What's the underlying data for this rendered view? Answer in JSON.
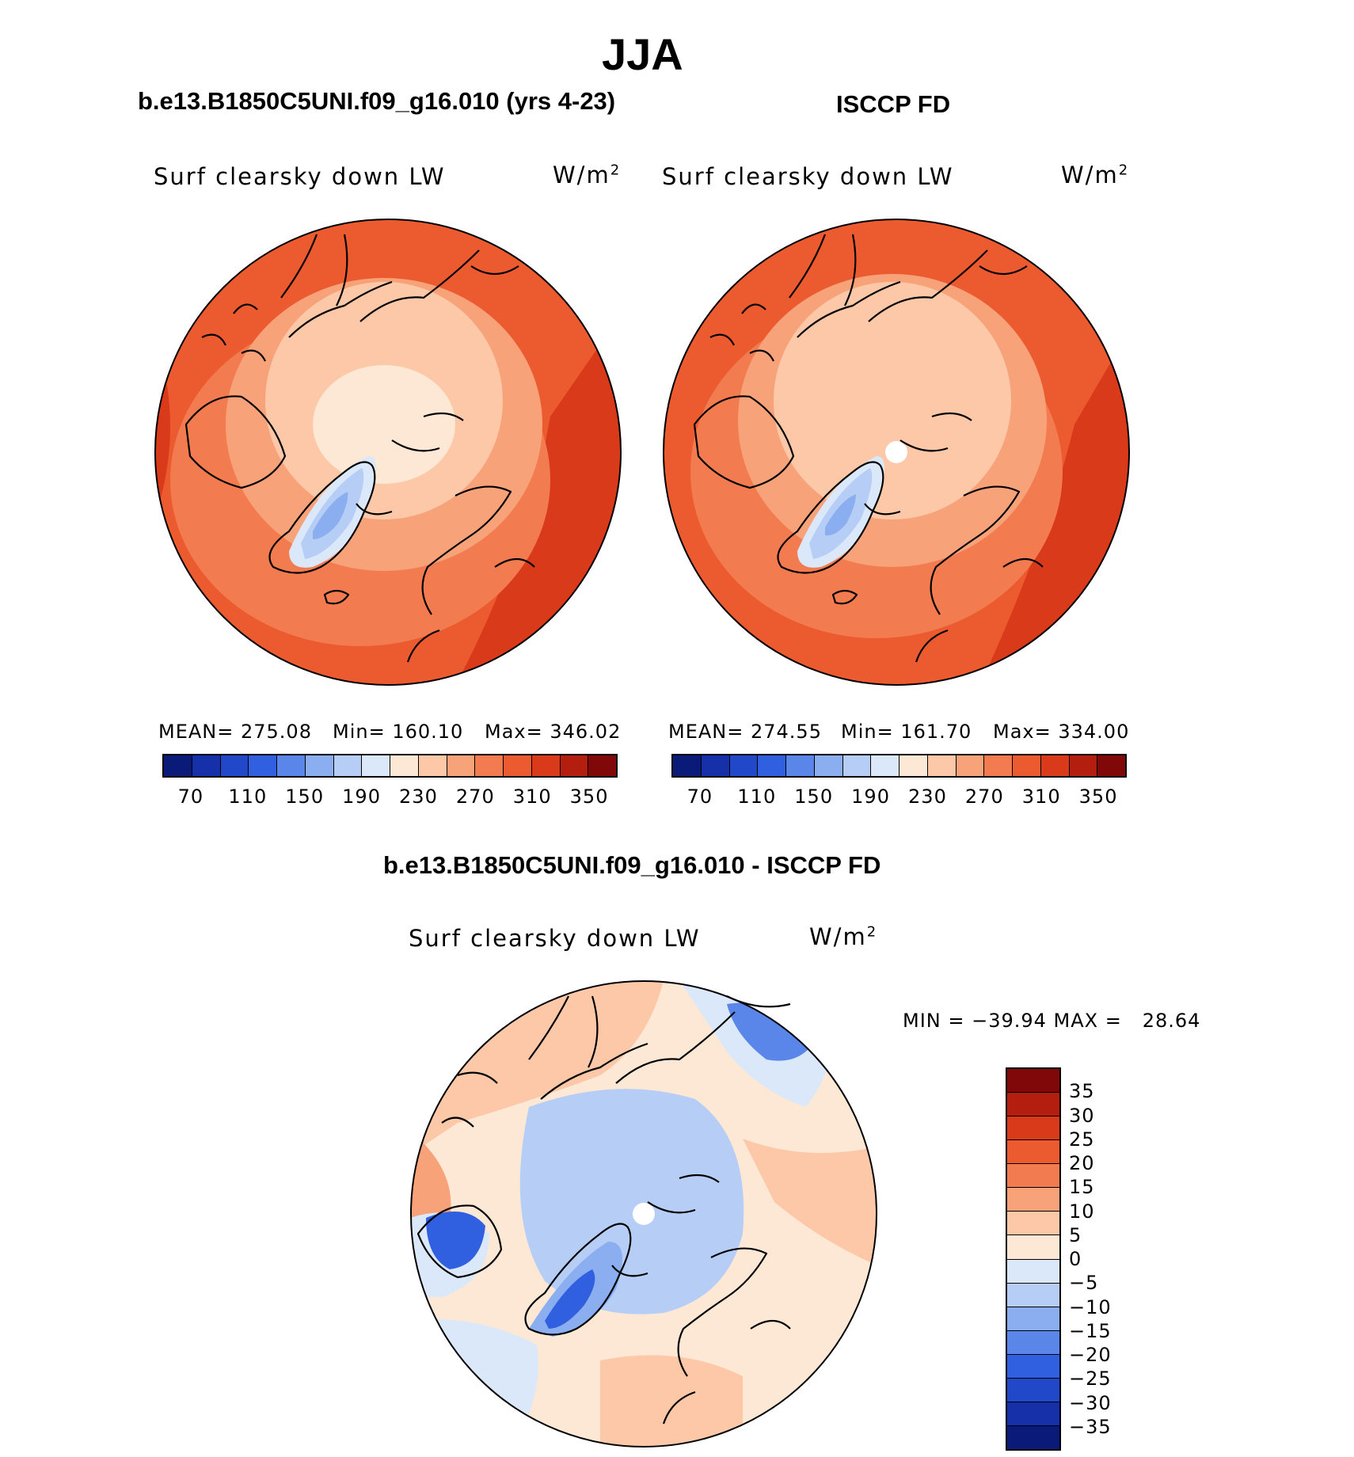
{
  "figure": {
    "season_title": "JJA",
    "panel1": {
      "header": "b.e13.B1850C5UNI.f09_g16.010 (yrs 4-23)",
      "variable": "Surf clearsky down LW",
      "unit_base": "W/m",
      "unit_exp": "2",
      "mean": "MEAN= 275.08",
      "min": "Min= 160.10",
      "max": "Max= 346.02"
    },
    "panel2": {
      "header": "ISCCP FD",
      "variable": "Surf clearsky down LW",
      "unit_base": "W/m",
      "unit_exp": "2",
      "mean": "MEAN= 274.55",
      "min": "Min= 161.70",
      "max": "Max= 334.00"
    },
    "panel3": {
      "header": "b.e13.B1850C5UNI.f09_g16.010 - ISCCP FD",
      "variable": "Surf clearsky down LW",
      "unit_base": "W/m",
      "unit_exp": "2",
      "minmax": "MIN = −39.94 MAX =   28.64"
    }
  },
  "colorbar_abs": {
    "colors": [
      "#0a1a78",
      "#1530a8",
      "#2048c8",
      "#3060e0",
      "#5a86ea",
      "#8aaef0",
      "#b6cef6",
      "#dae8fa",
      "#fde8d6",
      "#fcc8a8",
      "#f8a27a",
      "#f27c50",
      "#ec5a30",
      "#d83a1a",
      "#b41e0e",
      "#800808"
    ],
    "tick_labels": [
      "70",
      "110",
      "150",
      "190",
      "230",
      "270",
      "310",
      "350"
    ]
  },
  "colorbar_diff": {
    "colors": [
      "#800808",
      "#b41e0e",
      "#d83a1a",
      "#ec5a30",
      "#f27c50",
      "#f8a27a",
      "#fcc8a8",
      "#fde8d6",
      "#dae8fa",
      "#b6cef6",
      "#8aaef0",
      "#5a86ea",
      "#3060e0",
      "#2048c8",
      "#1530a8",
      "#0a1a78"
    ],
    "tick_labels": [
      "35",
      "30",
      "25",
      "20",
      "15",
      "10",
      "5",
      "0",
      "−5",
      "−10",
      "−15",
      "−20",
      "−25",
      "−30",
      "−35"
    ]
  }
}
